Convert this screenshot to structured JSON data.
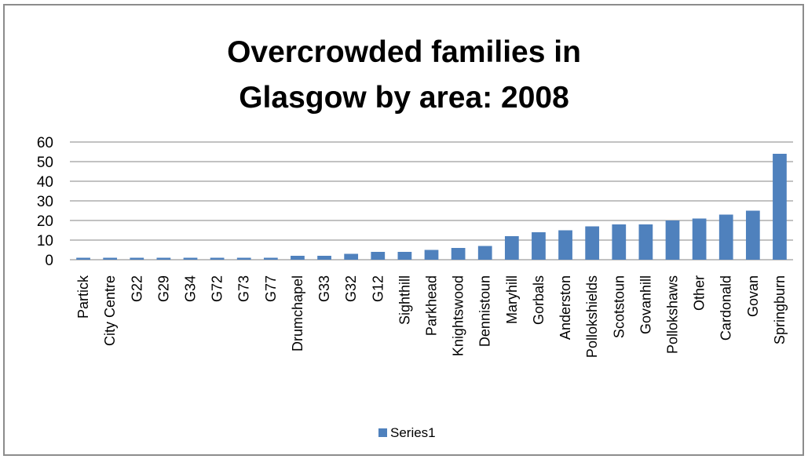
{
  "chart_data": {
    "type": "bar",
    "title_lines": [
      "Overcrowded families in",
      "Glasgow by area: 2008"
    ],
    "categories": [
      "Partick",
      "City Centre",
      "G22",
      "G29",
      "G34",
      "G72",
      "G73",
      "G77",
      "Drumchapel",
      "G33",
      "G32",
      "G12",
      "Sighthill",
      "Parkhead",
      "Knightswood",
      "Dennistoun",
      "Maryhill",
      "Gorbals",
      "Anderston",
      "Pollokshields",
      "Scotstoun",
      "Govanhill",
      "Pollokshaws",
      "Other",
      "Cardonald",
      "Govan",
      "Springburn"
    ],
    "series": [
      {
        "name": "Series1",
        "values": [
          1,
          1,
          1,
          1,
          1,
          1,
          1,
          1,
          2,
          2,
          3,
          4,
          4,
          5,
          6,
          7,
          12,
          14,
          15,
          17,
          18,
          18,
          20,
          21,
          23,
          25,
          54
        ]
      }
    ],
    "ylim": [
      0,
      60
    ],
    "yticks": [
      0,
      10,
      20,
      30,
      40,
      50,
      60
    ],
    "grid": true,
    "legend": "bottom",
    "colors": {
      "bar": "#4f81bd",
      "grid": "#868686",
      "border": "#8c8c8c"
    }
  }
}
